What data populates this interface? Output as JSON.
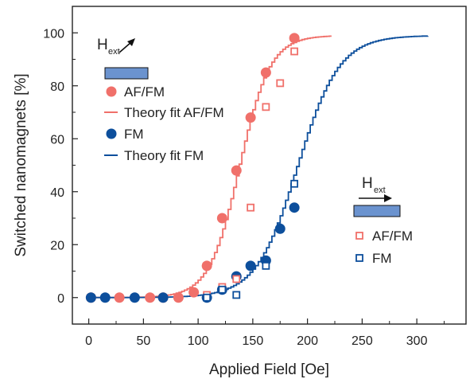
{
  "chart_data": {
    "type": "scatter",
    "xlabel": "Applied Field [Oe]",
    "ylabel": "Switched nanomagnets [%]",
    "xlim": [
      -15,
      345
    ],
    "ylim": [
      -10,
      110
    ],
    "xticks": [
      0,
      50,
      100,
      150,
      200,
      250,
      300
    ],
    "yticks": [
      0,
      20,
      40,
      60,
      80,
      100
    ],
    "legend_placement": "top-left",
    "legend2_placement": "right",
    "colors": {
      "af_fm": "#f0706a",
      "fm": "#0d4f9c",
      "magnet_bar": "#6b93cf"
    },
    "series": [
      {
        "name": "AF/FM",
        "marker": "filled-circle",
        "color": "#f0706a",
        "x": [
          2,
          28,
          56,
          68,
          82,
          96,
          108,
          122,
          135,
          148,
          162,
          188
        ],
        "y": [
          0,
          0,
          0,
          0,
          0,
          2,
          12,
          30,
          48,
          68,
          85,
          98
        ]
      },
      {
        "name": "Theory fit AF/FM",
        "line": "step",
        "color": "#f0706a",
        "midpoint": 137,
        "width": 14,
        "xmax": 222
      },
      {
        "name": "FM",
        "marker": "filled-circle",
        "color": "#0d4f9c",
        "x": [
          2,
          15,
          42,
          68,
          108,
          122,
          135,
          148,
          162,
          175,
          188
        ],
        "y": [
          0,
          0,
          0,
          0,
          0,
          3,
          8,
          12,
          14,
          26,
          34
        ]
      },
      {
        "name": "Theory fit FM",
        "line": "step",
        "color": "#0d4f9c",
        "midpoint": 190,
        "width": 19,
        "xmax": 310
      },
      {
        "name": "AF/FM",
        "marker": "open-square",
        "color": "#f0706a",
        "x": [
          108,
          122,
          135,
          148,
          162,
          175,
          188
        ],
        "y": [
          1,
          4,
          7,
          34,
          72,
          81,
          93
        ]
      },
      {
        "name": "FM",
        "marker": "open-square",
        "color": "#0d4f9c",
        "x": [
          108,
          122,
          135,
          162,
          188
        ],
        "y": [
          0,
          3,
          1,
          12,
          43
        ]
      }
    ],
    "legend1": {
      "hext_text": "H",
      "hext_sub": "ext",
      "items": [
        "AF/FM",
        "Theory fit AF/FM",
        "FM",
        "Theory fit FM"
      ]
    },
    "legend2": {
      "hext_text": "H",
      "hext_sub": "ext",
      "items": [
        "AF/FM",
        "FM"
      ]
    }
  }
}
